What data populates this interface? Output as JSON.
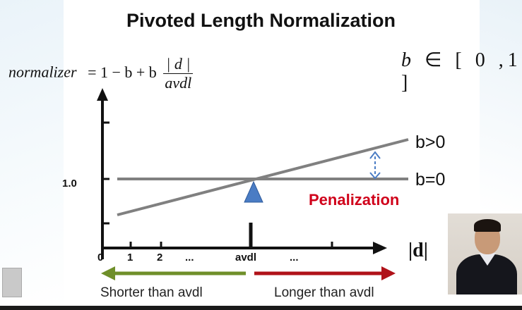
{
  "title": "Pivoted Length Normalization",
  "formula": {
    "lhs": "normalizer",
    "rhs": "= 1 − b + b",
    "numerator": "| d |",
    "denominator": "avdl"
  },
  "b_range": {
    "var": "b",
    "symbol": "∈",
    "interval": "[ 0 ,1 ]"
  },
  "labels": {
    "b_gt_0": "b>0",
    "b_eq_0": "b=0",
    "penalization": "Penalization",
    "y_one": "1.0",
    "d_axis": "|d|"
  },
  "x_ticks": [
    "0",
    "1",
    "2",
    "...",
    "avdl",
    "..."
  ],
  "captions": {
    "shorter": "Shorter than avdl",
    "longer": "Longer than avdl"
  },
  "colors": {
    "line": "#808080",
    "pivot": "#4a7cc4",
    "penalization": "#d0021b",
    "shorter_arrow": "#6f8f2a",
    "longer_arrow": "#b01219",
    "dashed_arrow": "#4a7cc4"
  }
}
